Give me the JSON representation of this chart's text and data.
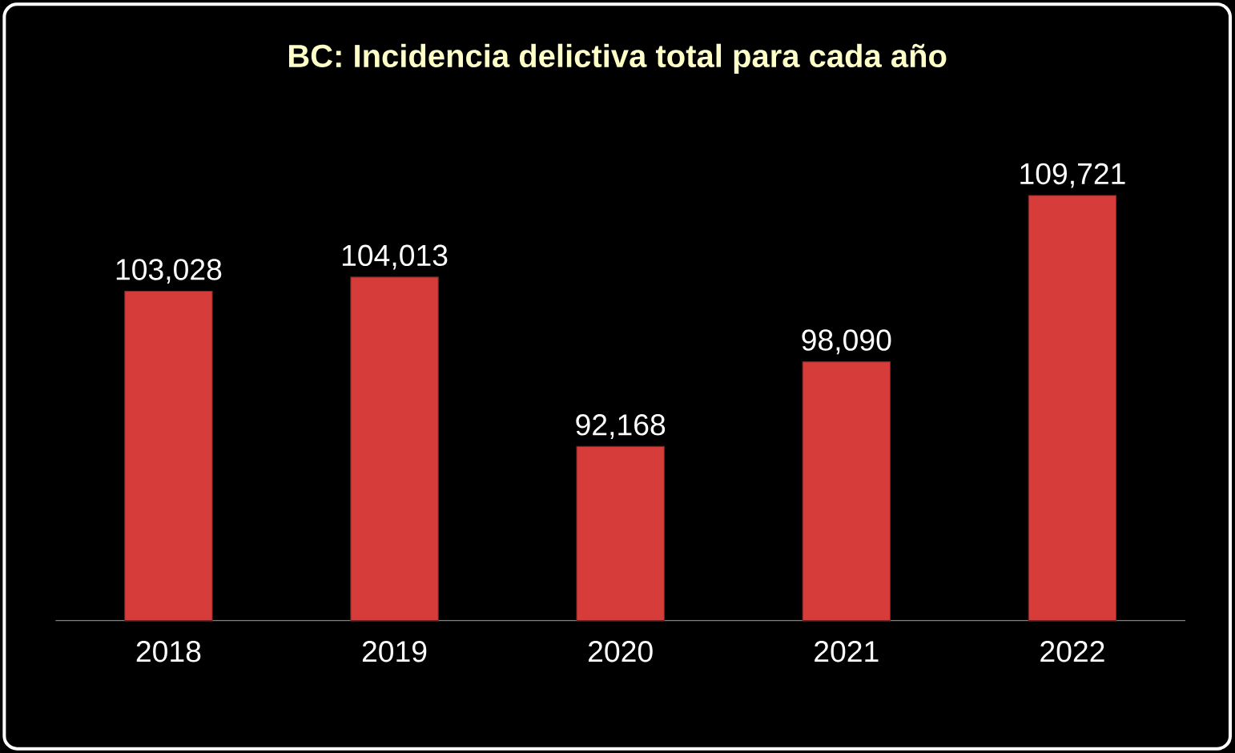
{
  "chart_data": {
    "type": "bar",
    "title": "BC: Incidencia delictiva total para cada año",
    "categories": [
      "2018",
      "2019",
      "2020",
      "2021",
      "2022"
    ],
    "values": [
      103028,
      104013,
      92168,
      98090,
      109721
    ],
    "value_labels": [
      "103,028",
      "104,013",
      "92,168",
      "98,090",
      "109,721"
    ],
    "color": "#d63c3a",
    "ylim": [
      80000,
      109721
    ],
    "tick_labels": "x"
  }
}
